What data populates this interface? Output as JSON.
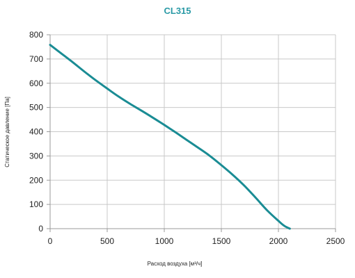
{
  "chart_data": {
    "type": "line",
    "title": "CL315",
    "xlabel": "Расход воздуха [м³/ч]",
    "ylabel": "Статическое давление [Па]",
    "xlim": [
      0,
      2500
    ],
    "ylim": [
      0,
      800
    ],
    "x_ticks": [
      0,
      500,
      1000,
      1500,
      2000,
      2500
    ],
    "y_ticks": [
      0,
      100,
      200,
      300,
      400,
      500,
      600,
      700,
      800
    ],
    "x_tick_labels": [
      "0",
      "500",
      "1000",
      "1500",
      "2000",
      "2500"
    ],
    "y_tick_labels": [
      "0",
      "100",
      "200",
      "300",
      "400",
      "500",
      "600",
      "700",
      "800"
    ],
    "grid": true,
    "series": [
      {
        "x": [
          0,
          100,
          200,
          300,
          400,
          500,
          600,
          700,
          800,
          900,
          1000,
          1100,
          1200,
          1300,
          1400,
          1500,
          1600,
          1700,
          1800,
          1900,
          2000,
          2050,
          2100
        ],
        "y": [
          758,
          722,
          686,
          648,
          612,
          578,
          545,
          515,
          487,
          458,
          428,
          397,
          365,
          333,
          300,
          262,
          222,
          178,
          128,
          76,
          32,
          12,
          0
        ]
      }
    ],
    "colors": {
      "line": "#1a8c94",
      "title": "#2a9aa6",
      "grid": "#c8c8c8",
      "axis": "#999999"
    }
  }
}
